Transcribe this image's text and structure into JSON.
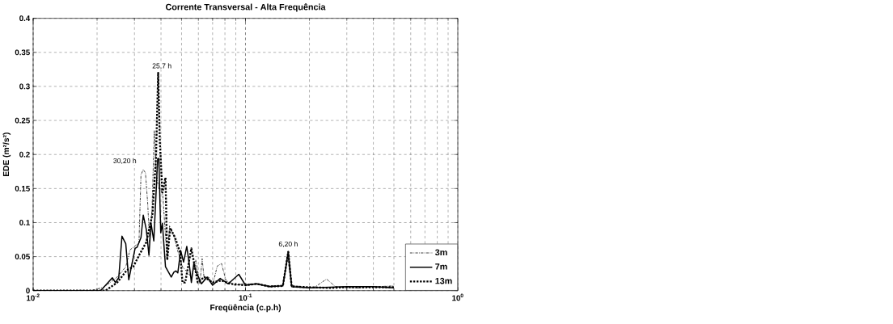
{
  "chart_data": {
    "type": "line",
    "title": "Corrente Transversal - Alta Frequência",
    "xlabel": "Freqüência (c.p.h)",
    "ylabel": "EDE (m²/s²)",
    "log": "x",
    "grid": true,
    "legend": "bottom right",
    "xlim": [
      0.01,
      1
    ],
    "xticks": [
      {
        "value": 0.01,
        "label": "10$^{-2}$"
      },
      {
        "value": 0.1,
        "label": "10$^{-1}$"
      },
      {
        "value": 1,
        "label": "10$^{0}$"
      }
    ],
    "ylim": [
      0,
      0.4
    ],
    "yticks": [
      0,
      0.05,
      0.1,
      0.15,
      0.2,
      0.25,
      0.3,
      0.35,
      0.4
    ],
    "annotations": [
      {
        "text": "25,7 h",
        "x": 0.0388,
        "y": 0.32
      },
      {
        "text": "30,20 h",
        "x": 0.0322,
        "y": 0.178
      },
      {
        "text": "6,20 h",
        "x": 0.159,
        "y": 0.057
      }
    ],
    "series": [
      {
        "name": "3m",
        "color": "#000000",
        "line_style": "dashdot",
        "x": [
          0.01,
          0.0187,
          0.0215,
          0.0249,
          0.0273,
          0.0286,
          0.03,
          0.0315,
          0.0322,
          0.033,
          0.0338,
          0.0346,
          0.0354,
          0.0363,
          0.0372,
          0.0381,
          0.039,
          0.0399,
          0.0408,
          0.0418,
          0.0428,
          0.0439,
          0.046,
          0.0482,
          0.0505,
          0.0529,
          0.0556,
          0.0583,
          0.061,
          0.0625,
          0.064,
          0.067,
          0.0703,
          0.0736,
          0.0771,
          0.0809,
          0.0848,
          0.0888,
          0.1,
          0.113,
          0.13,
          0.15,
          0.158,
          0.165,
          0.181,
          0.209,
          0.241,
          0.265,
          0.335,
          0.424,
          0.5
        ],
        "values": [
          0,
          0,
          0.005,
          0.02,
          0.035,
          0.06,
          0.065,
          0.07,
          0.17,
          0.178,
          0.173,
          0.13,
          0.07,
          0.12,
          0.235,
          0.17,
          0.15,
          0.15,
          0.14,
          0.09,
          0.045,
          0.095,
          0.08,
          0.056,
          0.035,
          0.028,
          0.02,
          0.045,
          0.01,
          0.047,
          0.015,
          0.02,
          0.01,
          0.036,
          0.04,
          0.015,
          0.012,
          0.008,
          0.01,
          0.01,
          0.007,
          0.008,
          0.05,
          0.008,
          0.006,
          0.004,
          0.017,
          0.006,
          0.004,
          0.006,
          0.007
        ]
      },
      {
        "name": "7m",
        "color": "#000000",
        "line_style": "solid",
        "x": [
          0.01,
          0.0208,
          0.0236,
          0.0244,
          0.0253,
          0.0262,
          0.0273,
          0.0282,
          0.0302,
          0.0309,
          0.0322,
          0.033,
          0.0341,
          0.0351,
          0.0359,
          0.037,
          0.0386,
          0.0391,
          0.0399,
          0.0406,
          0.042,
          0.0447,
          0.046,
          0.047,
          0.048,
          0.0495,
          0.0511,
          0.0529,
          0.0543,
          0.0556,
          0.0571,
          0.0585,
          0.062,
          0.066,
          0.07,
          0.076,
          0.083,
          0.093,
          0.1,
          0.113,
          0.13,
          0.15,
          0.159,
          0.165,
          0.2,
          0.25,
          0.3,
          0.4,
          0.5
        ],
        "values": [
          0,
          0,
          0.019,
          0.012,
          0.019,
          0.08,
          0.069,
          0.016,
          0.062,
          0.064,
          0.078,
          0.111,
          0.09,
          0.052,
          0.099,
          0.073,
          0.194,
          0.194,
          0.085,
          0.099,
          0.035,
          0.02,
          0.027,
          0.029,
          0.026,
          0.059,
          0.042,
          0.065,
          0.04,
          0.012,
          0.04,
          0.028,
          0.01,
          0.02,
          0.008,
          0.018,
          0.01,
          0.024,
          0.008,
          0.01,
          0.006,
          0.007,
          0.057,
          0.006,
          0.004,
          0.005,
          0.006,
          0.006,
          0.004
        ]
      },
      {
        "name": "13m",
        "color": "#000000",
        "line_style": "dotted",
        "x": [
          0.01,
          0.0219,
          0.0249,
          0.0276,
          0.0296,
          0.0318,
          0.0341,
          0.0365,
          0.0379,
          0.0388,
          0.0395,
          0.0406,
          0.042,
          0.0428,
          0.0442,
          0.0466,
          0.0492,
          0.0505,
          0.052,
          0.0556,
          0.0596,
          0.064,
          0.07,
          0.077,
          0.085,
          0.1,
          0.113,
          0.13,
          0.15,
          0.159,
          0.165,
          0.2,
          0.25,
          0.3,
          0.4,
          0.5
        ],
        "values": [
          0,
          0,
          0.012,
          0.03,
          0.035,
          0.054,
          0.071,
          0.113,
          0.197,
          0.32,
          0.22,
          0.144,
          0.166,
          0.045,
          0.092,
          0.078,
          0.056,
          0.012,
          0.012,
          0.062,
          0.012,
          0.02,
          0.012,
          0.015,
          0.01,
          0.008,
          0.01,
          0.006,
          0.007,
          0.057,
          0.006,
          0.005,
          0.004,
          0.005,
          0.005,
          0.005
        ]
      }
    ]
  }
}
